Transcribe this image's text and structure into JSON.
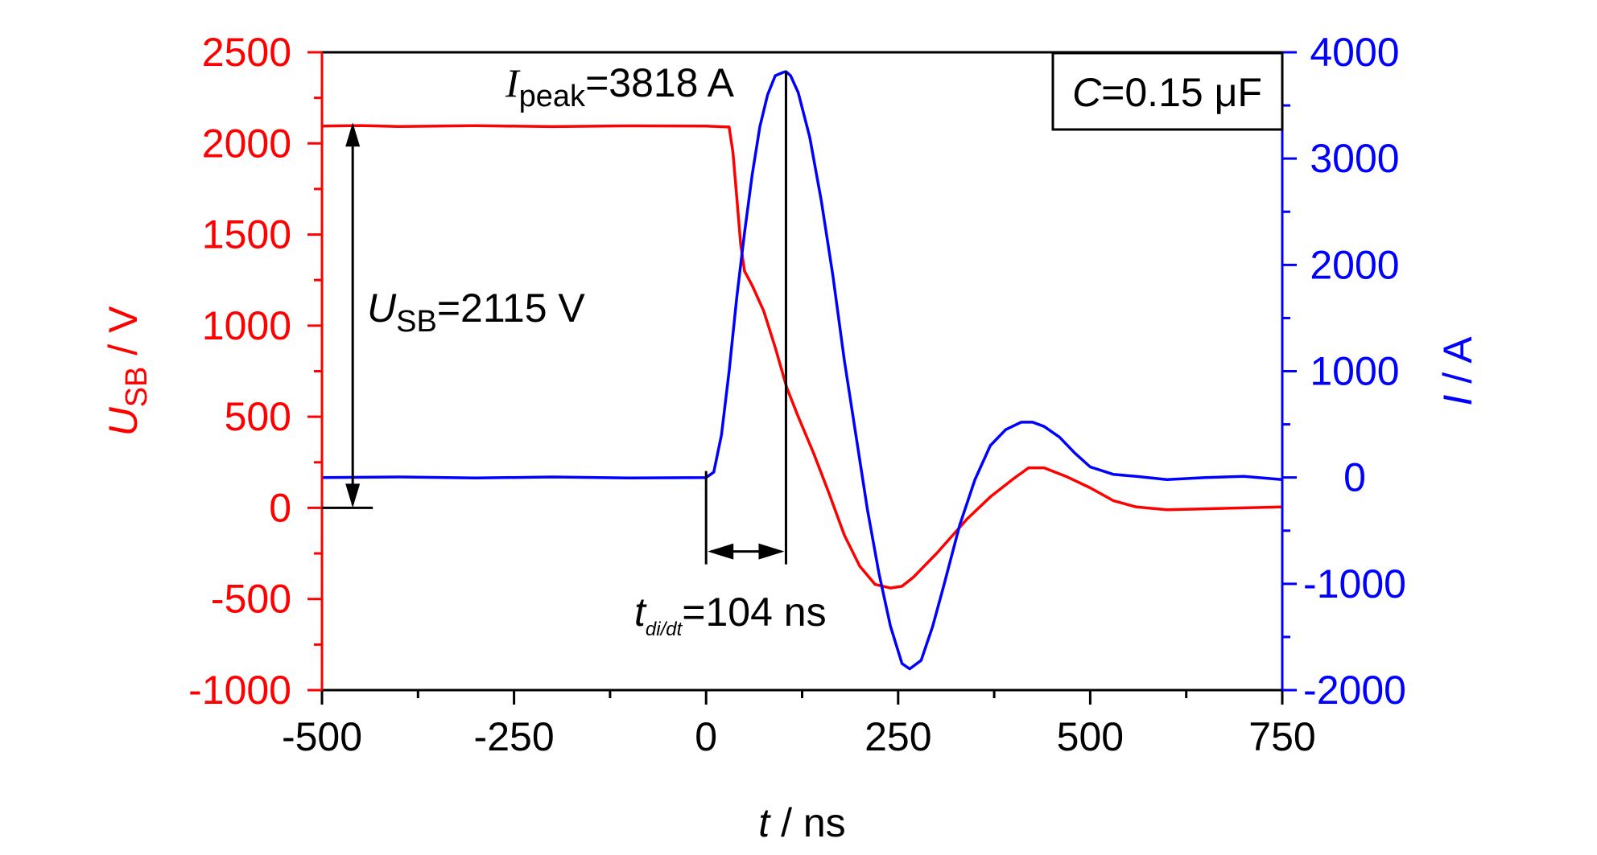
{
  "chart_data": {
    "type": "line",
    "title": "",
    "xlabel": {
      "symbol": "t",
      "rest": " / ns"
    },
    "ylabel_left": {
      "symbol": "U",
      "sub": "SB",
      "rest": " / V"
    },
    "ylabel_right": {
      "symbol": "I",
      "rest": " / A"
    },
    "xlim": [
      -500,
      750
    ],
    "ylim_left": [
      -1000,
      2500
    ],
    "ylim_right": [
      -2000,
      4000
    ],
    "x_ticks": [
      -500,
      -250,
      0,
      250,
      500,
      750
    ],
    "y_left_ticks": [
      2500,
      2000,
      1500,
      1000,
      500,
      0,
      -500,
      -1000
    ],
    "y_right_ticks": [
      4000,
      3000,
      2000,
      1000,
      0,
      -1000,
      -2000
    ],
    "grid": false,
    "colors": {
      "left_axis": "#ff0000",
      "right_axis": "#0000ff",
      "annotation": "#000000"
    },
    "series": [
      {
        "axis": "left",
        "color": "#ff0000",
        "x": [
          -500,
          -450,
          -400,
          -300,
          -200,
          -100,
          0,
          30,
          35,
          40,
          45,
          50,
          60,
          75,
          90,
          105,
          120,
          140,
          160,
          180,
          200,
          220,
          240,
          255,
          270,
          300,
          340,
          370,
          400,
          420,
          440,
          470,
          500,
          530,
          560,
          600,
          650,
          700,
          750
        ],
        "y": [
          2095,
          2098,
          2093,
          2097,
          2092,
          2096,
          2095,
          2090,
          1950,
          1700,
          1450,
          1300,
          1220,
          1080,
          880,
          660,
          500,
          300,
          80,
          -150,
          -320,
          -420,
          -440,
          -430,
          -380,
          -250,
          -60,
          60,
          160,
          220,
          220,
          170,
          110,
          40,
          5,
          -10,
          -5,
          0,
          5
        ]
      },
      {
        "axis": "right",
        "color": "#0000ff",
        "x": [
          -500,
          -400,
          -300,
          -200,
          -100,
          0,
          10,
          20,
          30,
          40,
          50,
          60,
          70,
          80,
          90,
          100,
          104,
          110,
          120,
          135,
          150,
          165,
          180,
          195,
          210,
          225,
          240,
          255,
          265,
          280,
          295,
          310,
          330,
          350,
          370,
          390,
          410,
          425,
          440,
          460,
          480,
          500,
          530,
          560,
          600,
          650,
          700,
          750
        ],
        "y": [
          0,
          5,
          -5,
          5,
          -5,
          0,
          50,
          400,
          1000,
          1700,
          2300,
          2850,
          3300,
          3600,
          3780,
          3810,
          3818,
          3780,
          3620,
          3200,
          2600,
          1900,
          1100,
          400,
          -300,
          -900,
          -1400,
          -1750,
          -1800,
          -1720,
          -1400,
          -1000,
          -450,
          -20,
          300,
          450,
          520,
          520,
          480,
          380,
          230,
          100,
          30,
          10,
          -20,
          0,
          10,
          -20
        ]
      }
    ],
    "annotations": {
      "peak": {
        "symbol": "I",
        "sub": "peak",
        "rest": "=3818 A",
        "x": 104,
        "y": 3818
      },
      "usb": {
        "symbol": "U",
        "sub": "SB",
        "rest": "=2115 V",
        "x": -460,
        "y_top": 2115,
        "y_bottom": 0
      },
      "tdidt": {
        "symbol": "t",
        "sub": "di/dt",
        "rest": "=104 ns",
        "x_start": 0,
        "x_end": 104
      },
      "capacitance": {
        "symbol": "C",
        "rest": "=0.15 μF"
      }
    }
  }
}
